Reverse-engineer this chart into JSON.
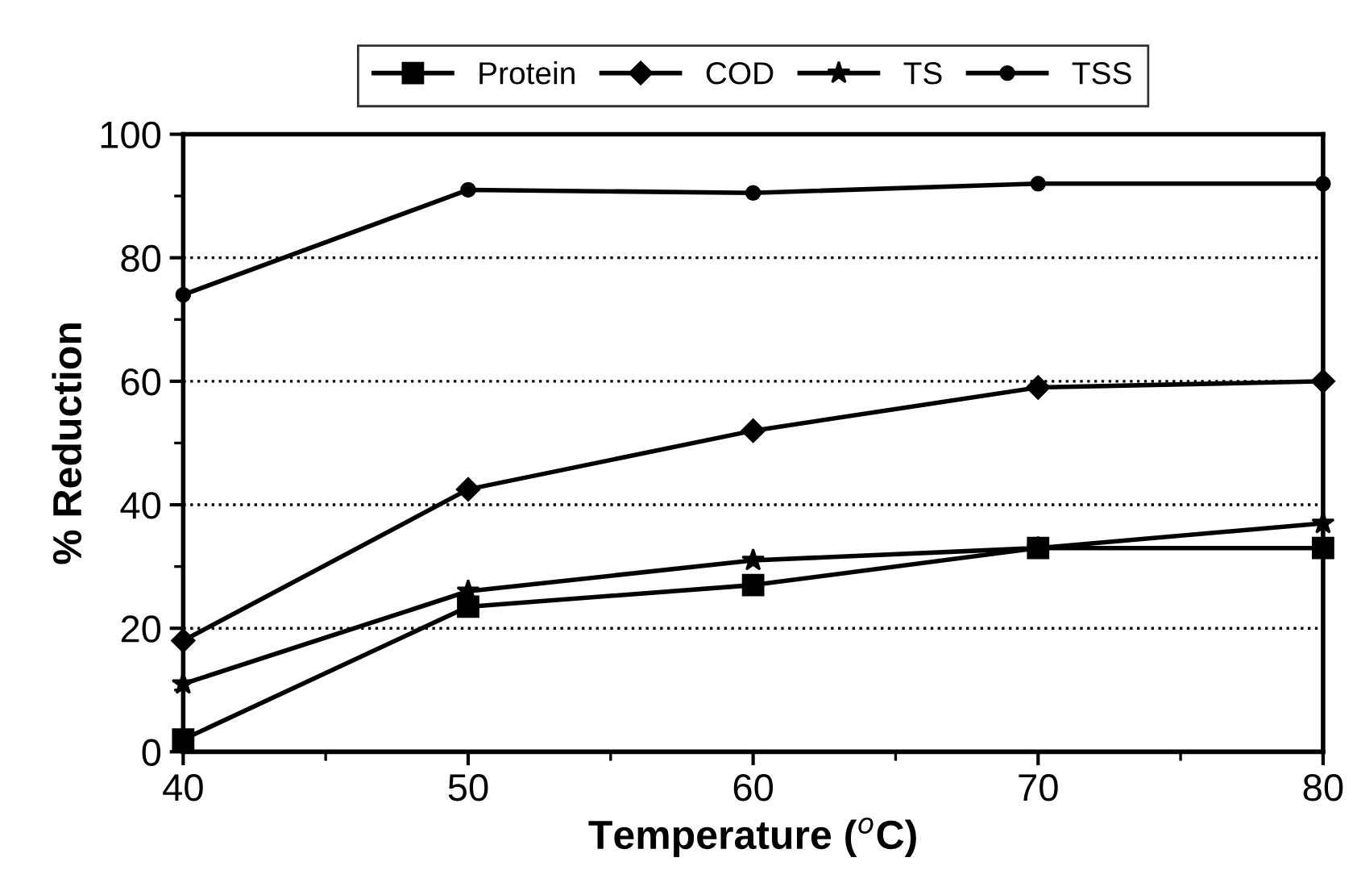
{
  "chart_data": {
    "type": "line",
    "xlabel": "Temperature ($^{o}$C)",
    "ylabel": "% Reduction",
    "x": [
      40,
      50,
      60,
      70,
      80
    ],
    "xlim": [
      40,
      80
    ],
    "xticks": [
      40,
      50,
      60,
      70,
      80
    ],
    "ylim": [
      0,
      100
    ],
    "yticks": [
      0,
      20,
      40,
      60,
      80,
      100
    ],
    "grid": "y",
    "legend": "top",
    "line_style": "solid",
    "series": [
      {
        "name": "Protein",
        "color": "#000000",
        "marker": "square",
        "values": [
          2,
          23.5,
          27,
          33,
          33
        ]
      },
      {
        "name": "COD",
        "color": "#000000",
        "marker": "diamond",
        "values": [
          18,
          42.5,
          52,
          59,
          60
        ]
      },
      {
        "name": "TS",
        "color": "#000000",
        "marker": "star",
        "values": [
          11,
          26,
          31,
          33,
          37
        ]
      },
      {
        "name": "TSS",
        "color": "#000000",
        "marker": "circle",
        "values": [
          74,
          91,
          90.5,
          92,
          92
        ]
      }
    ]
  }
}
